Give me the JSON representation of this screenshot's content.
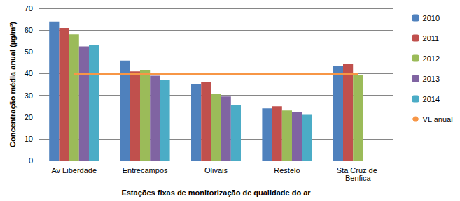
{
  "chart_data": {
    "type": "bar",
    "x_label": "Estações fixas de monitorização de qualidade do ar",
    "y_label": "Concentração média anual (µg/m³)",
    "categories": [
      "Av Liberdade",
      "Entrecampos",
      "Olivais",
      "Restelo",
      "Sta Cruz de Benfica"
    ],
    "series": [
      {
        "name": "2010",
        "color": "#4F81BD",
        "type": "bar",
        "values": [
          64,
          46,
          35,
          24,
          43.5
        ]
      },
      {
        "name": "2011",
        "color": "#C0504D",
        "type": "bar",
        "values": [
          61,
          41,
          36,
          25,
          44.5
        ]
      },
      {
        "name": "2012",
        "color": "#9BBB59",
        "type": "bar",
        "values": [
          58,
          41.5,
          30.5,
          23,
          39.5
        ]
      },
      {
        "name": "2013",
        "color": "#8064A2",
        "type": "bar",
        "values": [
          52.5,
          39,
          29.5,
          22.5,
          null
        ]
      },
      {
        "name": "2014",
        "color": "#4BACC6",
        "type": "bar",
        "values": [
          53,
          37,
          25.5,
          21,
          null
        ]
      },
      {
        "name": "VL anual",
        "color": "#F79646",
        "type": "line",
        "values": [
          40,
          40,
          40,
          40,
          40
        ]
      }
    ],
    "ylim": [
      0,
      70
    ],
    "yticks": [
      0,
      10,
      20,
      30,
      40,
      50,
      60,
      70
    ],
    "grid": true,
    "legend": "right"
  }
}
